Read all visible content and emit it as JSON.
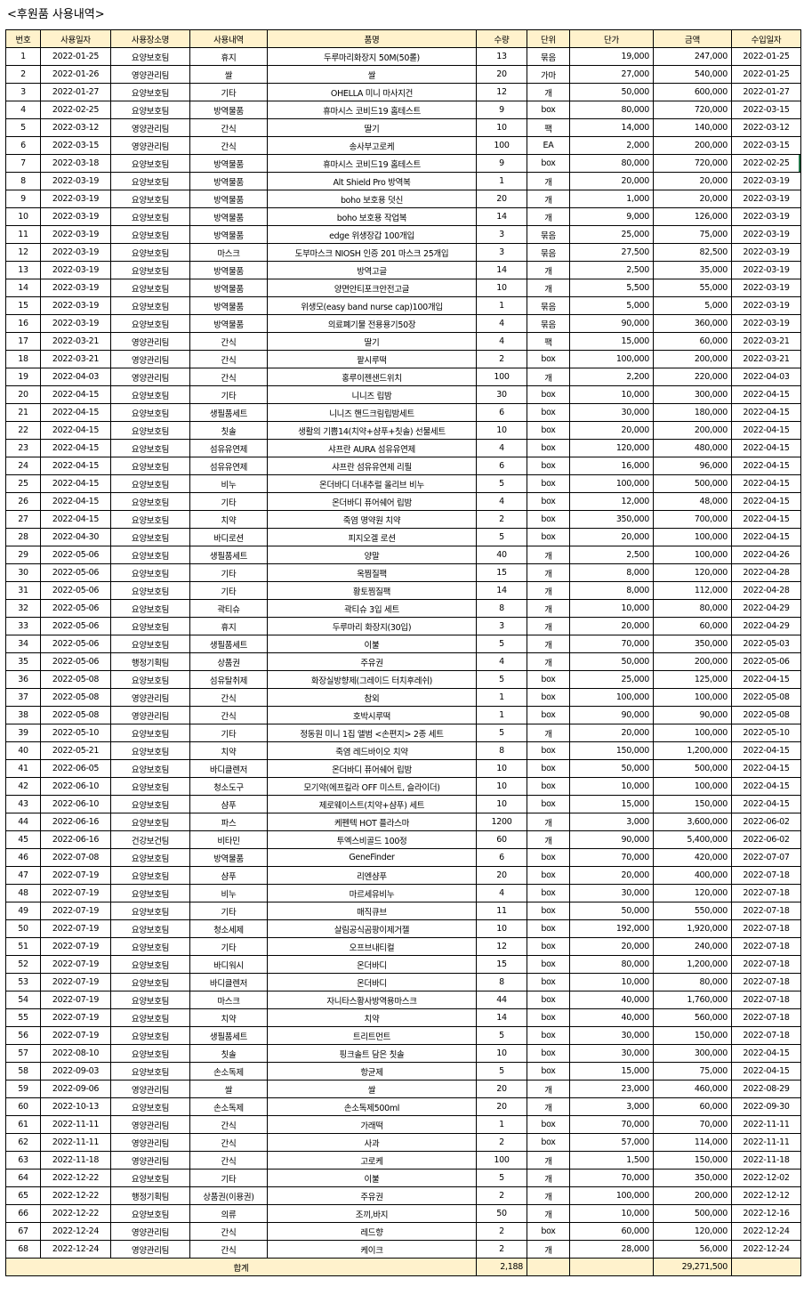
{
  "title": "<후원품 사용내역>",
  "headers": [
    "번호",
    "사용일자",
    "사용장소명",
    "사용내역",
    "품명",
    "수량",
    "단위",
    "단가",
    "금액",
    "수입일자"
  ],
  "rows": [
    [
      "1",
      "2022-01-25",
      "요양보호팀",
      "휴지",
      "두루마리화장지 50M(50롤)",
      "13",
      "묶음",
      "19,000",
      "247,000",
      "2022-01-25"
    ],
    [
      "2",
      "2022-01-26",
      "영양관리팀",
      "쌀",
      "쌀",
      "20",
      "가마",
      "27,000",
      "540,000",
      "2022-01-25"
    ],
    [
      "3",
      "2022-01-27",
      "요양보호팀",
      "기타",
      "OHELLA 미니 마사지건",
      "12",
      "개",
      "50,000",
      "600,000",
      "2022-01-27"
    ],
    [
      "4",
      "2022-02-25",
      "요양보호팀",
      "방역물품",
      "휴마시스 코비드19 홈테스트",
      "9",
      "box",
      "80,000",
      "720,000",
      "2022-03-15"
    ],
    [
      "5",
      "2022-03-12",
      "영양관리팀",
      "간식",
      "딸기",
      "10",
      "팩",
      "14,000",
      "140,000",
      "2022-03-12"
    ],
    [
      "6",
      "2022-03-15",
      "영양관리팀",
      "간식",
      "송사부고로케",
      "100",
      "EA",
      "2,000",
      "200,000",
      "2022-03-15"
    ],
    [
      "7",
      "2022-03-18",
      "요양보호팀",
      "방역물품",
      "휴마시스 코비드19 홈테스트",
      "9",
      "box",
      "80,000",
      "720,000",
      "2022-02-25"
    ],
    [
      "8",
      "2022-03-19",
      "요양보호팀",
      "방역물품",
      "Alt Shield Pro 방역복",
      "1",
      "개",
      "20,000",
      "20,000",
      "2022-03-19"
    ],
    [
      "9",
      "2022-03-19",
      "요양보호팀",
      "방역물품",
      "boho 보호용 덧신",
      "20",
      "개",
      "1,000",
      "20,000",
      "2022-03-19"
    ],
    [
      "10",
      "2022-03-19",
      "요양보호팀",
      "방역물품",
      "boho 보호용 작업복",
      "14",
      "개",
      "9,000",
      "126,000",
      "2022-03-19"
    ],
    [
      "11",
      "2022-03-19",
      "요양보호팀",
      "방역물품",
      "edge 위생장갑 100개입",
      "3",
      "묶음",
      "25,000",
      "75,000",
      "2022-03-19"
    ],
    [
      "12",
      "2022-03-19",
      "요양보호팀",
      "마스크",
      "도부마스크 NIOSH 인증 201 마스크 25개입",
      "3",
      "묶음",
      "27,500",
      "82,500",
      "2022-03-19"
    ],
    [
      "13",
      "2022-03-19",
      "요양보호팀",
      "방역물품",
      "방역고글",
      "14",
      "개",
      "2,500",
      "35,000",
      "2022-03-19"
    ],
    [
      "14",
      "2022-03-19",
      "요양보호팀",
      "방역물품",
      "양면안티포크안전고글",
      "10",
      "개",
      "5,500",
      "55,000",
      "2022-03-19"
    ],
    [
      "15",
      "2022-03-19",
      "요양보호팀",
      "방역물품",
      "위생모(easy band nurse cap)100개입",
      "1",
      "묶음",
      "5,000",
      "5,000",
      "2022-03-19"
    ],
    [
      "16",
      "2022-03-19",
      "요양보호팀",
      "방역물품",
      "의료폐기물 전용용기50장",
      "4",
      "묶음",
      "90,000",
      "360,000",
      "2022-03-19"
    ],
    [
      "17",
      "2022-03-21",
      "영양관리팀",
      "간식",
      "딸기",
      "4",
      "팩",
      "15,000",
      "60,000",
      "2022-03-21"
    ],
    [
      "18",
      "2022-03-21",
      "영양관리팀",
      "간식",
      "팥시루떡",
      "2",
      "box",
      "100,000",
      "200,000",
      "2022-03-21"
    ],
    [
      "19",
      "2022-04-03",
      "영양관리팀",
      "간식",
      "홍루이젠샌드위치",
      "100",
      "개",
      "2,200",
      "220,000",
      "2022-04-03"
    ],
    [
      "20",
      "2022-04-15",
      "요양보호팀",
      "기타",
      "니니즈 립밤",
      "30",
      "box",
      "10,000",
      "300,000",
      "2022-04-15"
    ],
    [
      "21",
      "2022-04-15",
      "요양보호팀",
      "생필품세트",
      "니니즈 핸드크림립밤세트",
      "6",
      "box",
      "30,000",
      "180,000",
      "2022-04-15"
    ],
    [
      "22",
      "2022-04-15",
      "요양보호팀",
      "칫솔",
      "생활의 기쁨14(치약+샴푸+칫솔) 선물세트",
      "10",
      "box",
      "20,000",
      "200,000",
      "2022-04-15"
    ],
    [
      "23",
      "2022-04-15",
      "요양보호팀",
      "섬유유연제",
      "샤프란 AURA 섬유유연제",
      "4",
      "box",
      "120,000",
      "480,000",
      "2022-04-15"
    ],
    [
      "24",
      "2022-04-15",
      "요양보호팀",
      "섬유유연제",
      "샤프란 섬유유연제 리필",
      "6",
      "box",
      "16,000",
      "96,000",
      "2022-04-15"
    ],
    [
      "25",
      "2022-04-15",
      "요양보호팀",
      "비누",
      "온더바디 더내추럴 올리브 비누",
      "5",
      "box",
      "100,000",
      "500,000",
      "2022-04-15"
    ],
    [
      "26",
      "2022-04-15",
      "요양보호팀",
      "기타",
      "온더바디 퓨어쉐어 립밤",
      "4",
      "box",
      "12,000",
      "48,000",
      "2022-04-15"
    ],
    [
      "27",
      "2022-04-15",
      "요양보호팀",
      "치약",
      "죽염 명약원 치약",
      "2",
      "box",
      "350,000",
      "700,000",
      "2022-04-15"
    ],
    [
      "28",
      "2022-04-30",
      "요양보호팀",
      "바디로션",
      "피지오겔 로션",
      "5",
      "box",
      "20,000",
      "100,000",
      "2022-04-15"
    ],
    [
      "29",
      "2022-05-06",
      "요양보호팀",
      "생필품세트",
      "양말",
      "40",
      "개",
      "2,500",
      "100,000",
      "2022-04-26"
    ],
    [
      "30",
      "2022-05-06",
      "요양보호팀",
      "기타",
      "옥찜질팩",
      "15",
      "개",
      "8,000",
      "120,000",
      "2022-04-28"
    ],
    [
      "31",
      "2022-05-06",
      "요양보호팀",
      "기타",
      "황토찜질팩",
      "14",
      "개",
      "8,000",
      "112,000",
      "2022-04-28"
    ],
    [
      "32",
      "2022-05-06",
      "요양보호팀",
      "곽티슈",
      "곽티슈 3입 세트",
      "8",
      "개",
      "10,000",
      "80,000",
      "2022-04-29"
    ],
    [
      "33",
      "2022-05-06",
      "요양보호팀",
      "휴지",
      "두루마리 화장지(30입)",
      "3",
      "개",
      "20,000",
      "60,000",
      "2022-04-29"
    ],
    [
      "34",
      "2022-05-06",
      "요양보호팀",
      "생필품세트",
      "이불",
      "5",
      "개",
      "70,000",
      "350,000",
      "2022-05-03"
    ],
    [
      "35",
      "2022-05-06",
      "행정기획팀",
      "상품권",
      "주유권",
      "4",
      "개",
      "50,000",
      "200,000",
      "2022-05-06"
    ],
    [
      "36",
      "2022-05-08",
      "요양보호팀",
      "섬유탈취제",
      "화장실방향제(그레이드 터치후레쉬)",
      "5",
      "box",
      "25,000",
      "125,000",
      "2022-04-15"
    ],
    [
      "37",
      "2022-05-08",
      "영양관리팀",
      "간식",
      "참외",
      "1",
      "box",
      "100,000",
      "100,000",
      "2022-05-08"
    ],
    [
      "38",
      "2022-05-08",
      "영양관리팀",
      "간식",
      "호박시루떡",
      "1",
      "box",
      "90,000",
      "90,000",
      "2022-05-08"
    ],
    [
      "39",
      "2022-05-10",
      "요양보호팀",
      "기타",
      "정동원 미니 1집 앨범 <손편지> 2종 세트",
      "5",
      "개",
      "20,000",
      "100,000",
      "2022-05-10"
    ],
    [
      "40",
      "2022-05-21",
      "요양보호팀",
      "치약",
      "죽염 레드바이오 치약",
      "8",
      "box",
      "150,000",
      "1,200,000",
      "2022-04-15"
    ],
    [
      "41",
      "2022-06-05",
      "요양보호팀",
      "바디클렌저",
      "온더바디 퓨어쉐어 립밤",
      "10",
      "box",
      "50,000",
      "500,000",
      "2022-04-15"
    ],
    [
      "42",
      "2022-06-10",
      "요양보호팀",
      "청소도구",
      "모기약(에프킬라 OFF 미스트, 슬라이더)",
      "10",
      "box",
      "10,000",
      "100,000",
      "2022-04-15"
    ],
    [
      "43",
      "2022-06-10",
      "요양보호팀",
      "샴푸",
      "제로웨이스트(치약+샴푸) 세트",
      "10",
      "box",
      "15,000",
      "150,000",
      "2022-04-15"
    ],
    [
      "44",
      "2022-06-16",
      "요양보호팀",
      "파스",
      "케펜텍 HOT 플라스마",
      "1200",
      "개",
      "3,000",
      "3,600,000",
      "2022-06-02"
    ],
    [
      "45",
      "2022-06-16",
      "건강보건팀",
      "비타민",
      "투엑스비골드 100정",
      "60",
      "개",
      "90,000",
      "5,400,000",
      "2022-06-02"
    ],
    [
      "46",
      "2022-07-08",
      "요양보호팀",
      "방역물품",
      "GeneFinder",
      "6",
      "box",
      "70,000",
      "420,000",
      "2022-07-07"
    ],
    [
      "47",
      "2022-07-19",
      "요양보호팀",
      "샴푸",
      "리엔샴푸",
      "20",
      "box",
      "20,000",
      "400,000",
      "2022-07-18"
    ],
    [
      "48",
      "2022-07-19",
      "요양보호팀",
      "비누",
      "마르세유비누",
      "4",
      "box",
      "30,000",
      "120,000",
      "2022-07-18"
    ],
    [
      "49",
      "2022-07-19",
      "요양보호팀",
      "기타",
      "매직큐브",
      "11",
      "box",
      "50,000",
      "550,000",
      "2022-07-18"
    ],
    [
      "50",
      "2022-07-19",
      "요양보호팀",
      "청소세제",
      "살림공식곰팡이제거젤",
      "10",
      "box",
      "192,000",
      "1,920,000",
      "2022-07-18"
    ],
    [
      "51",
      "2022-07-19",
      "요양보호팀",
      "기타",
      "오프브내티컬",
      "12",
      "box",
      "20,000",
      "240,000",
      "2022-07-18"
    ],
    [
      "52",
      "2022-07-19",
      "요양보호팀",
      "바디워시",
      "온더바디",
      "15",
      "box",
      "80,000",
      "1,200,000",
      "2022-07-18"
    ],
    [
      "53",
      "2022-07-19",
      "요양보호팀",
      "바디클렌저",
      "온더바디",
      "8",
      "box",
      "10,000",
      "80,000",
      "2022-07-18"
    ],
    [
      "54",
      "2022-07-19",
      "요양보호팀",
      "마스크",
      "자니타스황사방역용마스크",
      "44",
      "box",
      "40,000",
      "1,760,000",
      "2022-07-18"
    ],
    [
      "55",
      "2022-07-19",
      "요양보호팀",
      "치약",
      "치약",
      "14",
      "box",
      "40,000",
      "560,000",
      "2022-07-18"
    ],
    [
      "56",
      "2022-07-19",
      "요양보호팀",
      "생필품세트",
      "트리트먼트",
      "5",
      "box",
      "30,000",
      "150,000",
      "2022-07-18"
    ],
    [
      "57",
      "2022-08-10",
      "요양보호팀",
      "칫솔",
      "핑크솔트 담은 칫솔",
      "10",
      "box",
      "30,000",
      "300,000",
      "2022-04-15"
    ],
    [
      "58",
      "2022-09-03",
      "요양보호팀",
      "손소독제",
      "항균제",
      "5",
      "box",
      "15,000",
      "75,000",
      "2022-04-15"
    ],
    [
      "59",
      "2022-09-06",
      "영양관리팀",
      "쌀",
      "쌀",
      "20",
      "개",
      "23,000",
      "460,000",
      "2022-08-29"
    ],
    [
      "60",
      "2022-10-13",
      "요양보호팀",
      "손소독제",
      "손소독제500ml",
      "20",
      "개",
      "3,000",
      "60,000",
      "2022-09-30"
    ],
    [
      "61",
      "2022-11-11",
      "영양관리팀",
      "간식",
      "가래떡",
      "1",
      "box",
      "70,000",
      "70,000",
      "2022-11-11"
    ],
    [
      "62",
      "2022-11-11",
      "영양관리팀",
      "간식",
      "사과",
      "2",
      "box",
      "57,000",
      "114,000",
      "2022-11-11"
    ],
    [
      "63",
      "2022-11-18",
      "영양관리팀",
      "간식",
      "고로케",
      "100",
      "개",
      "1,500",
      "150,000",
      "2022-11-18"
    ],
    [
      "64",
      "2022-12-22",
      "요양보호팀",
      "기타",
      "이불",
      "5",
      "개",
      "70,000",
      "350,000",
      "2022-12-02"
    ],
    [
      "65",
      "2022-12-22",
      "행정기획팀",
      "상품권(이용권)",
      "주유권",
      "2",
      "개",
      "100,000",
      "200,000",
      "2022-12-12"
    ],
    [
      "66",
      "2022-12-22",
      "요양보호팀",
      "의류",
      "조끼,바지",
      "50",
      "개",
      "10,000",
      "500,000",
      "2022-12-16"
    ],
    [
      "67",
      "2022-12-24",
      "영양관리팀",
      "간식",
      "레드향",
      "2",
      "box",
      "60,000",
      "120,000",
      "2022-12-24"
    ],
    [
      "68",
      "2022-12-24",
      "영양관리팀",
      "간식",
      "케이크",
      "2",
      "개",
      "28,000",
      "56,000",
      "2022-12-24"
    ]
  ],
  "total": {
    "label": "합계",
    "quantity": "2,188",
    "amount": "29,271,500"
  },
  "colors": {
    "header_bg": "#fff2cc",
    "selection": "#217346"
  }
}
